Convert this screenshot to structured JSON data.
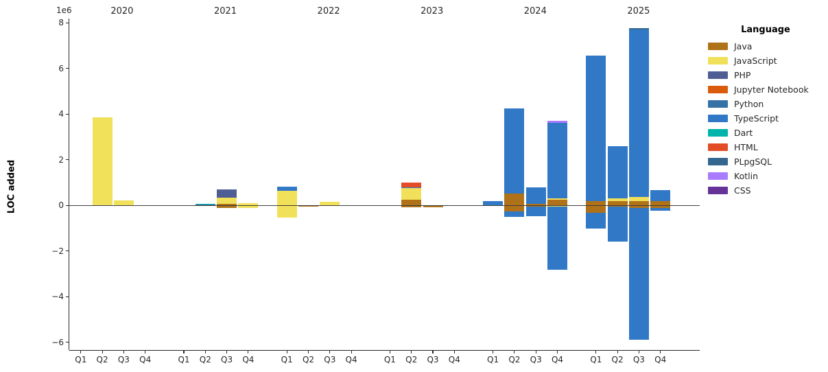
{
  "figure": {
    "ylabel": "LOC added",
    "offset_text": "1e6"
  },
  "chart_data": {
    "type": "bar",
    "stacked": true,
    "orientation": "vertical",
    "value_unit": "1e6 LOC (millions of lines)",
    "ylabel": "LOC added",
    "offset_text": "1e6",
    "yticks": [
      8,
      6,
      4,
      2,
      0,
      -2,
      -4,
      -6
    ],
    "ylim": [
      -6.35,
      8.2
    ],
    "zero_line": true,
    "grid": false,
    "x_quarter_labels": [
      "Q1",
      "Q2",
      "Q3",
      "Q4"
    ],
    "legend": {
      "title": "Language",
      "position": "right",
      "entries": [
        {
          "label": "Java",
          "color": "#b07219"
        },
        {
          "label": "JavaScript",
          "color": "#f1e05a"
        },
        {
          "label": "PHP",
          "color": "#4f5d95"
        },
        {
          "label": "Jupyter Notebook",
          "color": "#da5b0b"
        },
        {
          "label": "Python",
          "color": "#3572a5"
        },
        {
          "label": "TypeScript",
          "color": "#3178c6"
        },
        {
          "label": "Dart",
          "color": "#00b4ab"
        },
        {
          "label": "HTML",
          "color": "#e34c26"
        },
        {
          "label": "PLpgSQL",
          "color": "#336790"
        },
        {
          "label": "Kotlin",
          "color": "#a97bff"
        },
        {
          "label": "CSS",
          "color": "#663399"
        }
      ]
    },
    "groups": [
      {
        "year": "2020",
        "quarters": [
          {
            "label": "Q1",
            "segments": []
          },
          {
            "label": "Q2",
            "segments": [
              {
                "lang": "JavaScript",
                "value": 3.87
              }
            ]
          },
          {
            "label": "Q3",
            "segments": [
              {
                "lang": "JavaScript",
                "value": 0.22
              }
            ]
          },
          {
            "label": "Q4",
            "segments": []
          }
        ]
      },
      {
        "year": "2021",
        "quarters": [
          {
            "label": "Q1",
            "segments": []
          },
          {
            "label": "Q2",
            "segments": [
              {
                "lang": "Python",
                "value": 0.04
              },
              {
                "lang": "Dart",
                "value": 0.015
              }
            ]
          },
          {
            "label": "Q3",
            "segments": [
              {
                "lang": "Java",
                "value": 0.07
              },
              {
                "lang": "JavaScript",
                "value": 0.26
              },
              {
                "lang": "PHP",
                "value": 0.38
              },
              {
                "lang": "Java",
                "value": -0.1
              }
            ]
          },
          {
            "label": "Q4",
            "segments": [
              {
                "lang": "JavaScript",
                "value": 0.1
              },
              {
                "lang": "JavaScript",
                "value": -0.11
              }
            ]
          }
        ]
      },
      {
        "year": "2022",
        "quarters": [
          {
            "label": "Q1",
            "segments": [
              {
                "lang": "JavaScript",
                "value": 0.64
              },
              {
                "lang": "TypeScript",
                "value": 0.18
              },
              {
                "lang": "JavaScript",
                "value": -0.54
              }
            ]
          },
          {
            "label": "Q2",
            "segments": [
              {
                "lang": "Java",
                "value": 0.02
              },
              {
                "lang": "Java",
                "value": -0.06
              }
            ]
          },
          {
            "label": "Q3",
            "segments": [
              {
                "lang": "JavaScript",
                "value": 0.16
              }
            ]
          },
          {
            "label": "Q4",
            "segments": []
          }
        ]
      },
      {
        "year": "2023",
        "quarters": [
          {
            "label": "Q1",
            "segments": []
          },
          {
            "label": "Q2",
            "segments": [
              {
                "lang": "Java",
                "value": 0.25
              },
              {
                "lang": "JavaScript",
                "value": 0.51
              },
              {
                "lang": "TypeScript",
                "value": 0.04
              },
              {
                "lang": "HTML",
                "value": 0.21
              },
              {
                "lang": "Java",
                "value": -0.07
              }
            ]
          },
          {
            "label": "Q3",
            "segments": [
              {
                "lang": "Java",
                "value": -0.07
              }
            ]
          },
          {
            "label": "Q4",
            "segments": []
          }
        ]
      },
      {
        "year": "2024",
        "quarters": [
          {
            "label": "Q1",
            "segments": [
              {
                "lang": "TypeScript",
                "value": 0.18
              }
            ]
          },
          {
            "label": "Q2",
            "segments": [
              {
                "lang": "Java",
                "value": 0.51
              },
              {
                "lang": "TypeScript",
                "value": 3.74
              },
              {
                "lang": "Java",
                "value": -0.27
              },
              {
                "lang": "TypeScript",
                "value": -0.22
              }
            ]
          },
          {
            "label": "Q3",
            "segments": [
              {
                "lang": "Java",
                "value": 0.08
              },
              {
                "lang": "TypeScript",
                "value": 0.72
              },
              {
                "lang": "Java",
                "value": -0.04
              },
              {
                "lang": "TypeScript",
                "value": -0.43
              }
            ]
          },
          {
            "label": "Q4",
            "segments": [
              {
                "lang": "Java",
                "value": 0.24
              },
              {
                "lang": "JavaScript",
                "value": 0.06
              },
              {
                "lang": "TypeScript",
                "value": 3.32
              },
              {
                "lang": "Kotlin",
                "value": 0.09
              },
              {
                "lang": "JavaScript",
                "value": -0.05
              },
              {
                "lang": "TypeScript",
                "value": -2.78
              }
            ]
          }
        ]
      },
      {
        "year": "2025",
        "quarters": [
          {
            "label": "Q1",
            "segments": [
              {
                "lang": "Java",
                "value": 0.18
              },
              {
                "lang": "TypeScript",
                "value": 6.39
              },
              {
                "lang": "Java",
                "value": -0.32
              },
              {
                "lang": "TypeScript",
                "value": -0.7
              }
            ]
          },
          {
            "label": "Q2",
            "segments": [
              {
                "lang": "Java",
                "value": 0.18
              },
              {
                "lang": "JavaScript",
                "value": 0.12
              },
              {
                "lang": "TypeScript",
                "value": 2.3
              },
              {
                "lang": "Java",
                "value": -0.04
              },
              {
                "lang": "TypeScript",
                "value": -1.54
              }
            ]
          },
          {
            "label": "Q3",
            "segments": [
              {
                "lang": "Java",
                "value": 0.18
              },
              {
                "lang": "JavaScript",
                "value": 0.2
              },
              {
                "lang": "TypeScript",
                "value": 7.34
              },
              {
                "lang": "PLpgSQL",
                "value": 0.06
              },
              {
                "lang": "Java",
                "value": -0.11
              },
              {
                "lang": "TypeScript",
                "value": -5.78
              }
            ]
          },
          {
            "label": "Q4",
            "segments": [
              {
                "lang": "Java",
                "value": 0.18
              },
              {
                "lang": "TypeScript",
                "value": 0.5
              },
              {
                "lang": "Java",
                "value": -0.1
              },
              {
                "lang": "TypeScript",
                "value": -0.12
              }
            ]
          }
        ]
      }
    ]
  }
}
